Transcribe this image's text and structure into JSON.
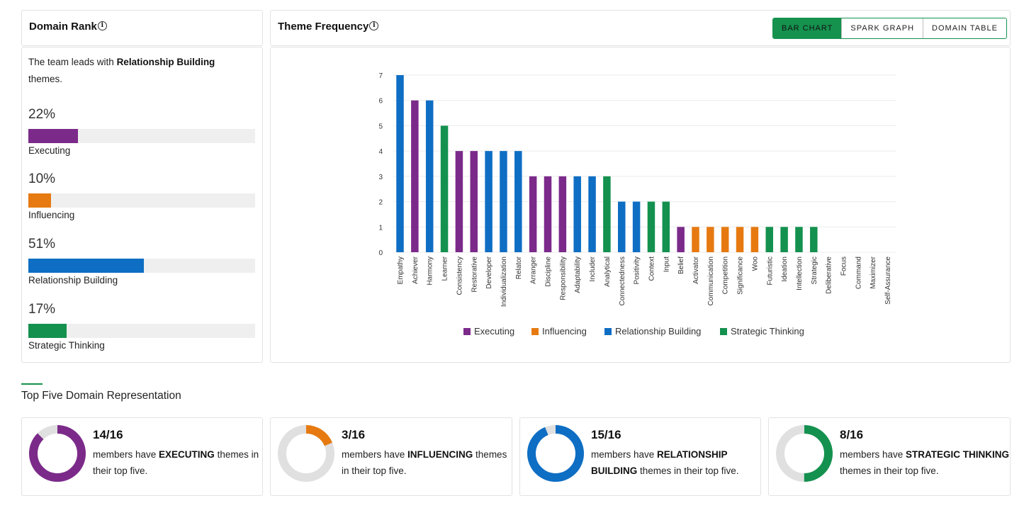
{
  "domain_rank": {
    "title": "Domain Rank",
    "info_icon": "info-icon",
    "summary_prefix": "The team leads with ",
    "summary_bold": "Relationship Building",
    "summary_suffix": " themes.",
    "items": [
      {
        "pct_label": "22%",
        "value": 0.22,
        "label": "Executing",
        "color": "#7b2a8a"
      },
      {
        "pct_label": "10%",
        "value": 0.1,
        "label": "Influencing",
        "color": "#e67a11"
      },
      {
        "pct_label": "51%",
        "value": 0.51,
        "label": "Relationship Building",
        "color": "#0e6ec4"
      },
      {
        "pct_label": "17%",
        "value": 0.17,
        "label": "Strategic Thinking",
        "color": "#14914f"
      }
    ]
  },
  "theme_frequency": {
    "title": "Theme Frequency",
    "info_icon": "info-icon",
    "views": [
      "BAR CHART",
      "SPARK GRAPH",
      "DOMAIN TABLE"
    ],
    "selected_view": "BAR CHART"
  },
  "chart_data": {
    "type": "bar",
    "ylim": [
      0,
      7
    ],
    "yticks": [
      0,
      1,
      2,
      3,
      4,
      5,
      6,
      7
    ],
    "grid": true,
    "legend_placement": "bottom",
    "categories": [
      "Empathy",
      "Achiever",
      "Harmony",
      "Learner",
      "Consistency",
      "Restorative",
      "Developer",
      "Individualization",
      "Relator",
      "Arranger",
      "Discipline",
      "Responsibility",
      "Adaptability",
      "Includer",
      "Analytical",
      "Connectedness",
      "Positivity",
      "Context",
      "Input",
      "Belief",
      "Activator",
      "Communication",
      "Competition",
      "Significance",
      "Woo",
      "Futuristic",
      "Ideation",
      "Intellection",
      "Strategic",
      "Deliberative",
      "Focus",
      "Command",
      "Maximizer",
      "Self-Assurance"
    ],
    "values": [
      7,
      6,
      6,
      5,
      4,
      4,
      4,
      4,
      4,
      3,
      3,
      3,
      3,
      3,
      3,
      2,
      2,
      2,
      2,
      1,
      1,
      1,
      1,
      1,
      1,
      1,
      1,
      1,
      1,
      0,
      0,
      0,
      0,
      0
    ],
    "domains": [
      "Relationship Building",
      "Executing",
      "Relationship Building",
      "Strategic Thinking",
      "Executing",
      "Executing",
      "Relationship Building",
      "Relationship Building",
      "Relationship Building",
      "Executing",
      "Executing",
      "Executing",
      "Relationship Building",
      "Relationship Building",
      "Strategic Thinking",
      "Relationship Building",
      "Relationship Building",
      "Strategic Thinking",
      "Strategic Thinking",
      "Executing",
      "Influencing",
      "Influencing",
      "Influencing",
      "Influencing",
      "Influencing",
      "Strategic Thinking",
      "Strategic Thinking",
      "Strategic Thinking",
      "Strategic Thinking",
      "Executing",
      "Executing",
      "Influencing",
      "Influencing",
      "Influencing"
    ],
    "legend": [
      {
        "name": "Executing",
        "color": "#7b2a8a"
      },
      {
        "name": "Influencing",
        "color": "#e67a11"
      },
      {
        "name": "Relationship Building",
        "color": "#0e6ec4"
      },
      {
        "name": "Strategic Thinking",
        "color": "#14914f"
      }
    ]
  },
  "top_five": {
    "title": "Top Five Domain Representation",
    "cards": [
      {
        "fraction": "14/16",
        "value": 0.875,
        "prefix": "members have ",
        "bold": "EXECUTING",
        "suffix": " themes in their top five.",
        "color": "#7b2a8a"
      },
      {
        "fraction": "3/16",
        "value": 0.1875,
        "prefix": "members have ",
        "bold": "INFLUENCING",
        "suffix": " themes in their top five.",
        "color": "#e67a11"
      },
      {
        "fraction": "15/16",
        "value": 0.9375,
        "prefix": "members have ",
        "bold": "RELATIONSHIP BUILDING",
        "suffix": " themes in their top five.",
        "color": "#0e6ec4"
      },
      {
        "fraction": "8/16",
        "value": 0.5,
        "prefix": "members have ",
        "bold": "STRATEGIC THINKING",
        "suffix": " themes in their top five.",
        "color": "#14914f"
      }
    ]
  }
}
